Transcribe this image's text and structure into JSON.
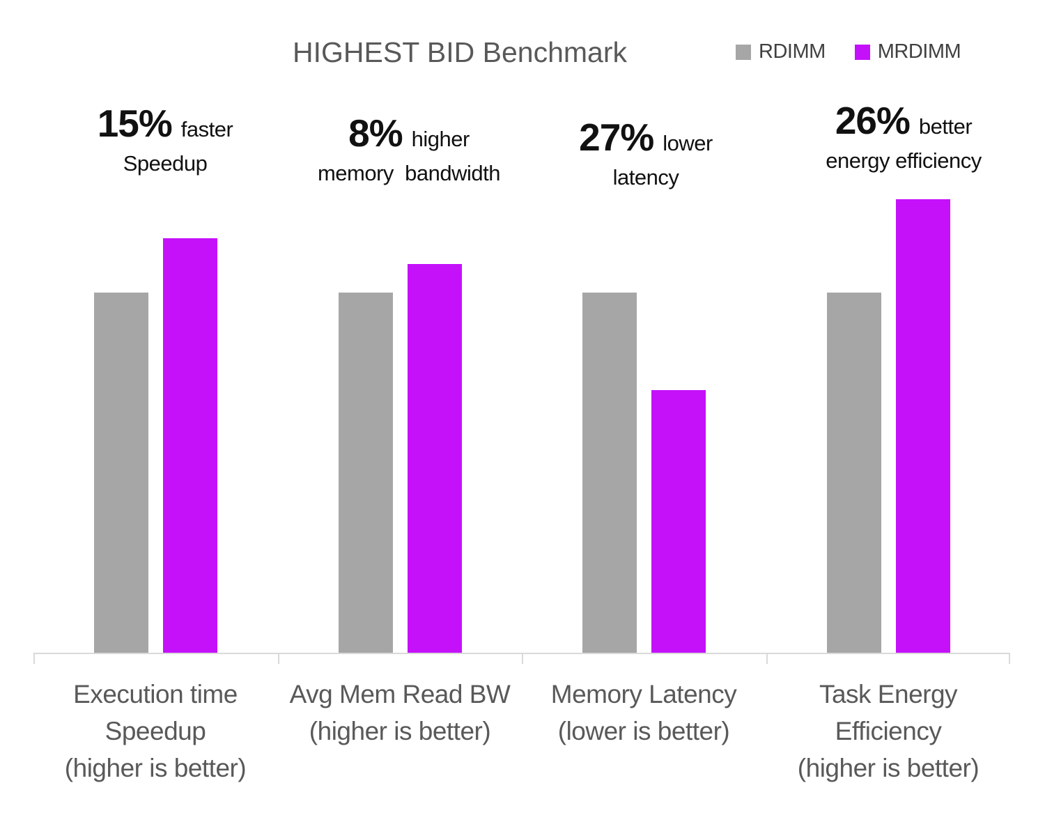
{
  "title": "HIGHEST BID Benchmark",
  "colors": {
    "rdimm": "#a6a6a6",
    "mrdimm": "#c511fa",
    "axis": "#d9d9d9",
    "title_text": "#595959",
    "legend_text": "#404040",
    "category_text": "#595959",
    "annotation_text": "#111111"
  },
  "legend": [
    {
      "label": "RDIMM",
      "color": "#a6a6a6"
    },
    {
      "label": "MRDIMM",
      "color": "#c511fa"
    }
  ],
  "groups": [
    {
      "annotation": {
        "big": "15%",
        "small": "faster",
        "sub": "Speedup"
      },
      "category_lines": [
        "Execution time",
        "Speedup",
        "(higher is better)"
      ],
      "values": {
        "RDIMM": 1.0,
        "MRDIMM": 1.15
      }
    },
    {
      "annotation": {
        "big": "8%",
        "small": "higher",
        "sub": "memory  bandwidth"
      },
      "category_lines": [
        "Avg Mem Read BW",
        "(higher is better)"
      ],
      "values": {
        "RDIMM": 1.0,
        "MRDIMM": 1.08
      }
    },
    {
      "annotation": {
        "big": "27%",
        "small": "lower",
        "sub": "latency"
      },
      "category_lines": [
        "Memory Latency",
        "(lower is better)"
      ],
      "values": {
        "RDIMM": 1.0,
        "MRDIMM": 0.73
      }
    },
    {
      "annotation": {
        "big": "26%",
        "small": "better",
        "sub": "energy efficiency"
      },
      "category_lines": [
        "Task Energy",
        "Efficiency",
        "(higher is better)"
      ],
      "values": {
        "RDIMM": 1.0,
        "MRDIMM": 1.26
      }
    }
  ],
  "chart_data": {
    "type": "bar",
    "title": "HIGHEST BID Benchmark",
    "categories": [
      "Execution time Speedup (higher is better)",
      "Avg Mem Read BW (higher is better)",
      "Memory Latency (lower is better)",
      "Task Energy Efficiency (higher is better)"
    ],
    "series": [
      {
        "name": "RDIMM",
        "color": "#a6a6a6",
        "values": [
          1.0,
          1.0,
          1.0,
          1.0
        ]
      },
      {
        "name": "MRDIMM",
        "color": "#c511fa",
        "values": [
          1.15,
          1.08,
          0.73,
          1.26
        ]
      }
    ],
    "annotations": [
      "15% faster Speedup",
      "8% higher memory bandwidth",
      "27% lower latency",
      "26% better energy efficiency"
    ],
    "xlabel": "",
    "ylabel": "",
    "ylim": [
      0,
      1.3
    ],
    "grid": false,
    "y_axis_labels_visible": false,
    "legend_position": "top-right"
  }
}
